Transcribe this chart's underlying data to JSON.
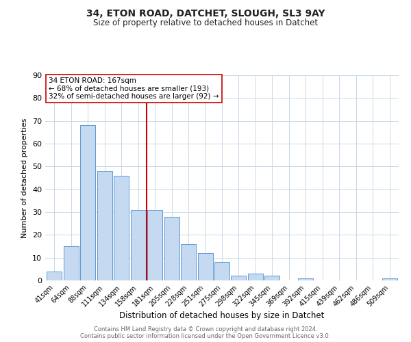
{
  "title": "34, ETON ROAD, DATCHET, SLOUGH, SL3 9AY",
  "subtitle": "Size of property relative to detached houses in Datchet",
  "xlabel": "Distribution of detached houses by size in Datchet",
  "ylabel": "Number of detached properties",
  "bar_labels": [
    "41sqm",
    "64sqm",
    "88sqm",
    "111sqm",
    "134sqm",
    "158sqm",
    "181sqm",
    "205sqm",
    "228sqm",
    "251sqm",
    "275sqm",
    "298sqm",
    "322sqm",
    "345sqm",
    "369sqm",
    "392sqm",
    "415sqm",
    "439sqm",
    "462sqm",
    "486sqm",
    "509sqm"
  ],
  "bar_values": [
    4,
    15,
    68,
    48,
    46,
    31,
    31,
    28,
    16,
    12,
    8,
    2,
    3,
    2,
    0,
    1,
    0,
    0,
    0,
    0,
    1
  ],
  "bar_color": "#c5d9f1",
  "bar_edge_color": "#5b9bd5",
  "ylim": [
    0,
    90
  ],
  "yticks": [
    0,
    10,
    20,
    30,
    40,
    50,
    60,
    70,
    80,
    90
  ],
  "property_line_index": 6,
  "property_line_color": "#cc0000",
  "annotation_line1": "34 ETON ROAD: 167sqm",
  "annotation_line2": "← 68% of detached houses are smaller (193)",
  "annotation_line3": "32% of semi-detached houses are larger (92) →",
  "annotation_box_color": "#ffffff",
  "annotation_box_edge": "#cc0000",
  "footer_line1": "Contains HM Land Registry data © Crown copyright and database right 2024.",
  "footer_line2": "Contains public sector information licensed under the Open Government Licence v3.0.",
  "background_color": "#ffffff",
  "grid_color": "#c8d8e8"
}
